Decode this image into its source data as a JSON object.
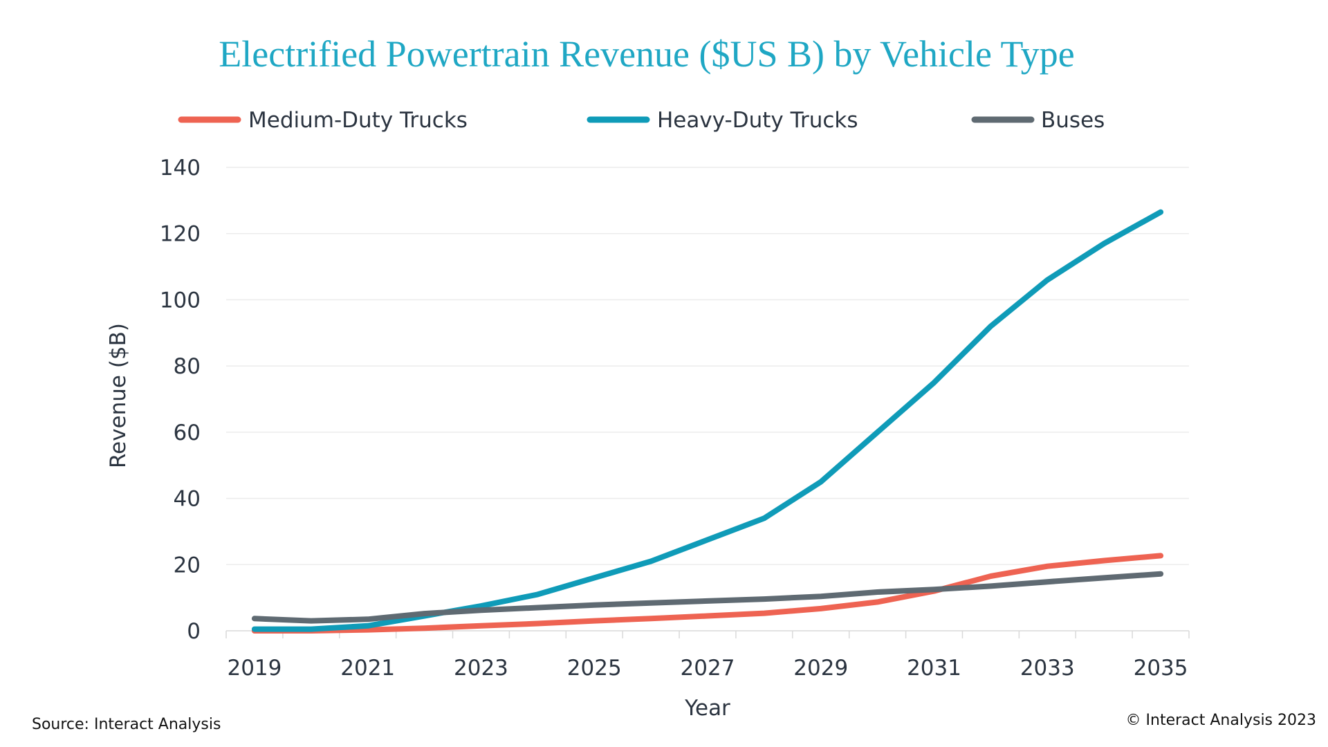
{
  "chart_data": {
    "type": "line",
    "title": "Electrified Powertrain Revenue ($US B) by Vehicle Type",
    "xlabel": "Year",
    "ylabel": "Revenue ($B)",
    "x": [
      2019,
      2020,
      2021,
      2022,
      2023,
      2024,
      2025,
      2026,
      2027,
      2028,
      2029,
      2030,
      2031,
      2032,
      2033,
      2034,
      2035
    ],
    "x_tick_labels": [
      "2019",
      "2021",
      "2023",
      "2025",
      "2027",
      "2029",
      "2031",
      "2033",
      "2035"
    ],
    "ylim": [
      0,
      140
    ],
    "y_ticks": [
      0,
      20,
      40,
      60,
      80,
      100,
      120,
      140
    ],
    "grid": true,
    "legend_position": "top",
    "series": [
      {
        "name": "Medium-Duty Trucks",
        "color": "#ee6352",
        "values": [
          0,
          0,
          0.3,
          0.8,
          1.5,
          2.2,
          3,
          3.7,
          4.5,
          5.3,
          6.7,
          8.7,
          12,
          16.5,
          19.5,
          21.2,
          22.7
        ]
      },
      {
        "name": "Heavy-Duty Trucks",
        "color": "#0f9bb8",
        "values": [
          0.5,
          0.5,
          1.5,
          4.5,
          7.5,
          11,
          16,
          21,
          27.5,
          34,
          45,
          60,
          75,
          92,
          106,
          117,
          126.5
        ]
      },
      {
        "name": "Buses",
        "color": "#5f6a72",
        "values": [
          3.7,
          3,
          3.5,
          5.2,
          6.2,
          7,
          7.8,
          8.4,
          9,
          9.6,
          10.4,
          11.7,
          12.5,
          13.5,
          14.8,
          16,
          17.2
        ]
      }
    ]
  },
  "footer": {
    "source": "Source: Interact Analysis",
    "copyright": "© Interact Analysis 2023"
  }
}
